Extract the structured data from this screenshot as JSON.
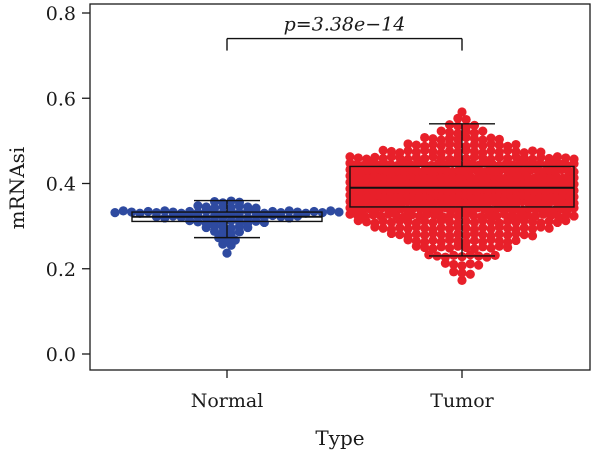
{
  "chart_data": {
    "type": "scatter",
    "subtype": "box-beeswarm",
    "xlabel": "Type",
    "ylabel": "mRNAsi",
    "ylim": [
      0,
      0.8
    ],
    "yticks": [
      0.0,
      0.2,
      0.4,
      0.6,
      0.8
    ],
    "ytick_labels": [
      "0.0",
      "0.2",
      "0.4",
      "0.6",
      "0.8"
    ],
    "categories": [
      "Normal",
      "Tumor"
    ],
    "grid": false,
    "legend": "none",
    "annotation": {
      "text_prefix": "p",
      "text_value": "=3.38e−14",
      "between": [
        "Normal",
        "Tumor"
      ],
      "y": 0.74
    },
    "series": [
      {
        "name": "Normal",
        "color": "#2e4aa0",
        "box": {
          "whisker_low": 0.273,
          "q1": 0.311,
          "median": 0.322,
          "q3": 0.333,
          "whisker_high": 0.36
        },
        "bins": [
          {
            "y": 0.238,
            "n": 1
          },
          {
            "y": 0.255,
            "n": 2
          },
          {
            "y": 0.27,
            "n": 3
          },
          {
            "y": 0.285,
            "n": 4
          },
          {
            "y": 0.298,
            "n": 6
          },
          {
            "y": 0.31,
            "n": 10
          },
          {
            "y": 0.322,
            "n": 18
          },
          {
            "y": 0.333,
            "n": 28
          },
          {
            "y": 0.345,
            "n": 8
          },
          {
            "y": 0.356,
            "n": 4
          }
        ]
      },
      {
        "name": "Tumor",
        "color": "#e8202a",
        "box": {
          "whisker_low": 0.23,
          "q1": 0.345,
          "median": 0.39,
          "q3": 0.44,
          "whisker_high": 0.54
        },
        "bins": [
          {
            "y": 0.17,
            "n": 1
          },
          {
            "y": 0.19,
            "n": 3
          },
          {
            "y": 0.21,
            "n": 5
          },
          {
            "y": 0.23,
            "n": 9
          },
          {
            "y": 0.25,
            "n": 12
          },
          {
            "y": 0.265,
            "n": 14
          },
          {
            "y": 0.28,
            "n": 18
          },
          {
            "y": 0.295,
            "n": 22
          },
          {
            "y": 0.31,
            "n": 26
          },
          {
            "y": 0.325,
            "n": 30
          },
          {
            "y": 0.34,
            "n": 36
          },
          {
            "y": 0.355,
            "n": 40
          },
          {
            "y": 0.37,
            "n": 40
          },
          {
            "y": 0.385,
            "n": 40
          },
          {
            "y": 0.4,
            "n": 40
          },
          {
            "y": 0.415,
            "n": 40
          },
          {
            "y": 0.43,
            "n": 38
          },
          {
            "y": 0.445,
            "n": 34
          },
          {
            "y": 0.46,
            "n": 28
          },
          {
            "y": 0.475,
            "n": 20
          },
          {
            "y": 0.49,
            "n": 14
          },
          {
            "y": 0.505,
            "n": 10
          },
          {
            "y": 0.52,
            "n": 6
          },
          {
            "y": 0.535,
            "n": 4
          },
          {
            "y": 0.55,
            "n": 2
          },
          {
            "y": 0.565,
            "n": 1
          }
        ]
      }
    ]
  }
}
